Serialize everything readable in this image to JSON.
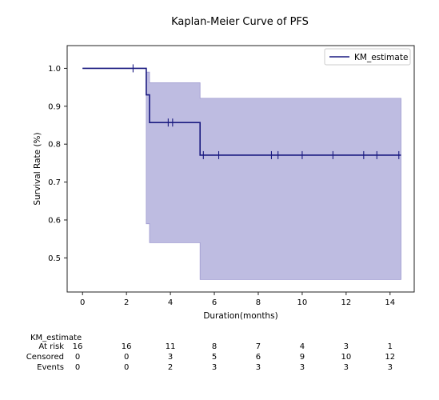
{
  "chart_data": {
    "type": "line",
    "title": "Kaplan-Meier Curve of PFS",
    "xlabel": "Duration(months)",
    "ylabel": "Survival Rate (%)",
    "xlim": [
      -0.7,
      15.1
    ],
    "ylim": [
      0.41,
      1.06
    ],
    "xticks": [
      0,
      2,
      4,
      6,
      8,
      10,
      12,
      14
    ],
    "yticks": [
      0.5,
      0.6,
      0.7,
      0.8,
      0.9,
      1.0
    ],
    "ytick_labels": [
      "0.5",
      "0.6",
      "0.7",
      "0.8",
      "0.9",
      "1.0"
    ],
    "grid": false,
    "legend": {
      "position": "top-right",
      "entries": [
        "KM_estimate"
      ]
    },
    "colors": {
      "line": "#1a1a80",
      "band": "#b3b0dc",
      "band_edge": "#9e9ad0"
    },
    "series": [
      {
        "name": "KM_estimate",
        "steps": [
          {
            "x": 0.0,
            "y": 1.0
          },
          {
            "x": 2.9,
            "y": 0.93
          },
          {
            "x": 3.05,
            "y": 0.857
          },
          {
            "x": 5.35,
            "y": 0.771
          },
          {
            "x": 14.5,
            "y": 0.771
          }
        ],
        "ci_band": [
          {
            "x": 0.0,
            "lower": 1.0,
            "upper": 1.0
          },
          {
            "x": 2.9,
            "lower": 0.59,
            "upper": 0.99
          },
          {
            "x": 3.05,
            "lower": 0.54,
            "upper": 0.962
          },
          {
            "x": 5.35,
            "lower": 0.443,
            "upper": 0.921
          },
          {
            "x": 14.5,
            "lower": 0.443,
            "upper": 0.921
          }
        ],
        "censored": [
          {
            "x": 2.3,
            "y": 1.0
          },
          {
            "x": 3.9,
            "y": 0.857
          },
          {
            "x": 4.1,
            "y": 0.857
          },
          {
            "x": 5.5,
            "y": 0.771
          },
          {
            "x": 6.2,
            "y": 0.771
          },
          {
            "x": 8.6,
            "y": 0.771
          },
          {
            "x": 8.9,
            "y": 0.771
          },
          {
            "x": 10.0,
            "y": 0.771
          },
          {
            "x": 11.4,
            "y": 0.771
          },
          {
            "x": 12.8,
            "y": 0.771
          },
          {
            "x": 13.4,
            "y": 0.771
          },
          {
            "x": 14.4,
            "y": 0.771
          }
        ]
      }
    ],
    "risk_table": {
      "label": "KM_estimate",
      "rows": [
        {
          "name": "At risk",
          "values": [
            "16",
            "16",
            "11",
            "8",
            "7",
            "4",
            "3",
            "1"
          ]
        },
        {
          "name": "Censored",
          "values": [
            "0",
            "0",
            "3",
            "5",
            "6",
            "9",
            "10",
            "12"
          ]
        },
        {
          "name": "Events",
          "values": [
            "0",
            "0",
            "2",
            "3",
            "3",
            "3",
            "3",
            "3"
          ]
        }
      ]
    }
  }
}
